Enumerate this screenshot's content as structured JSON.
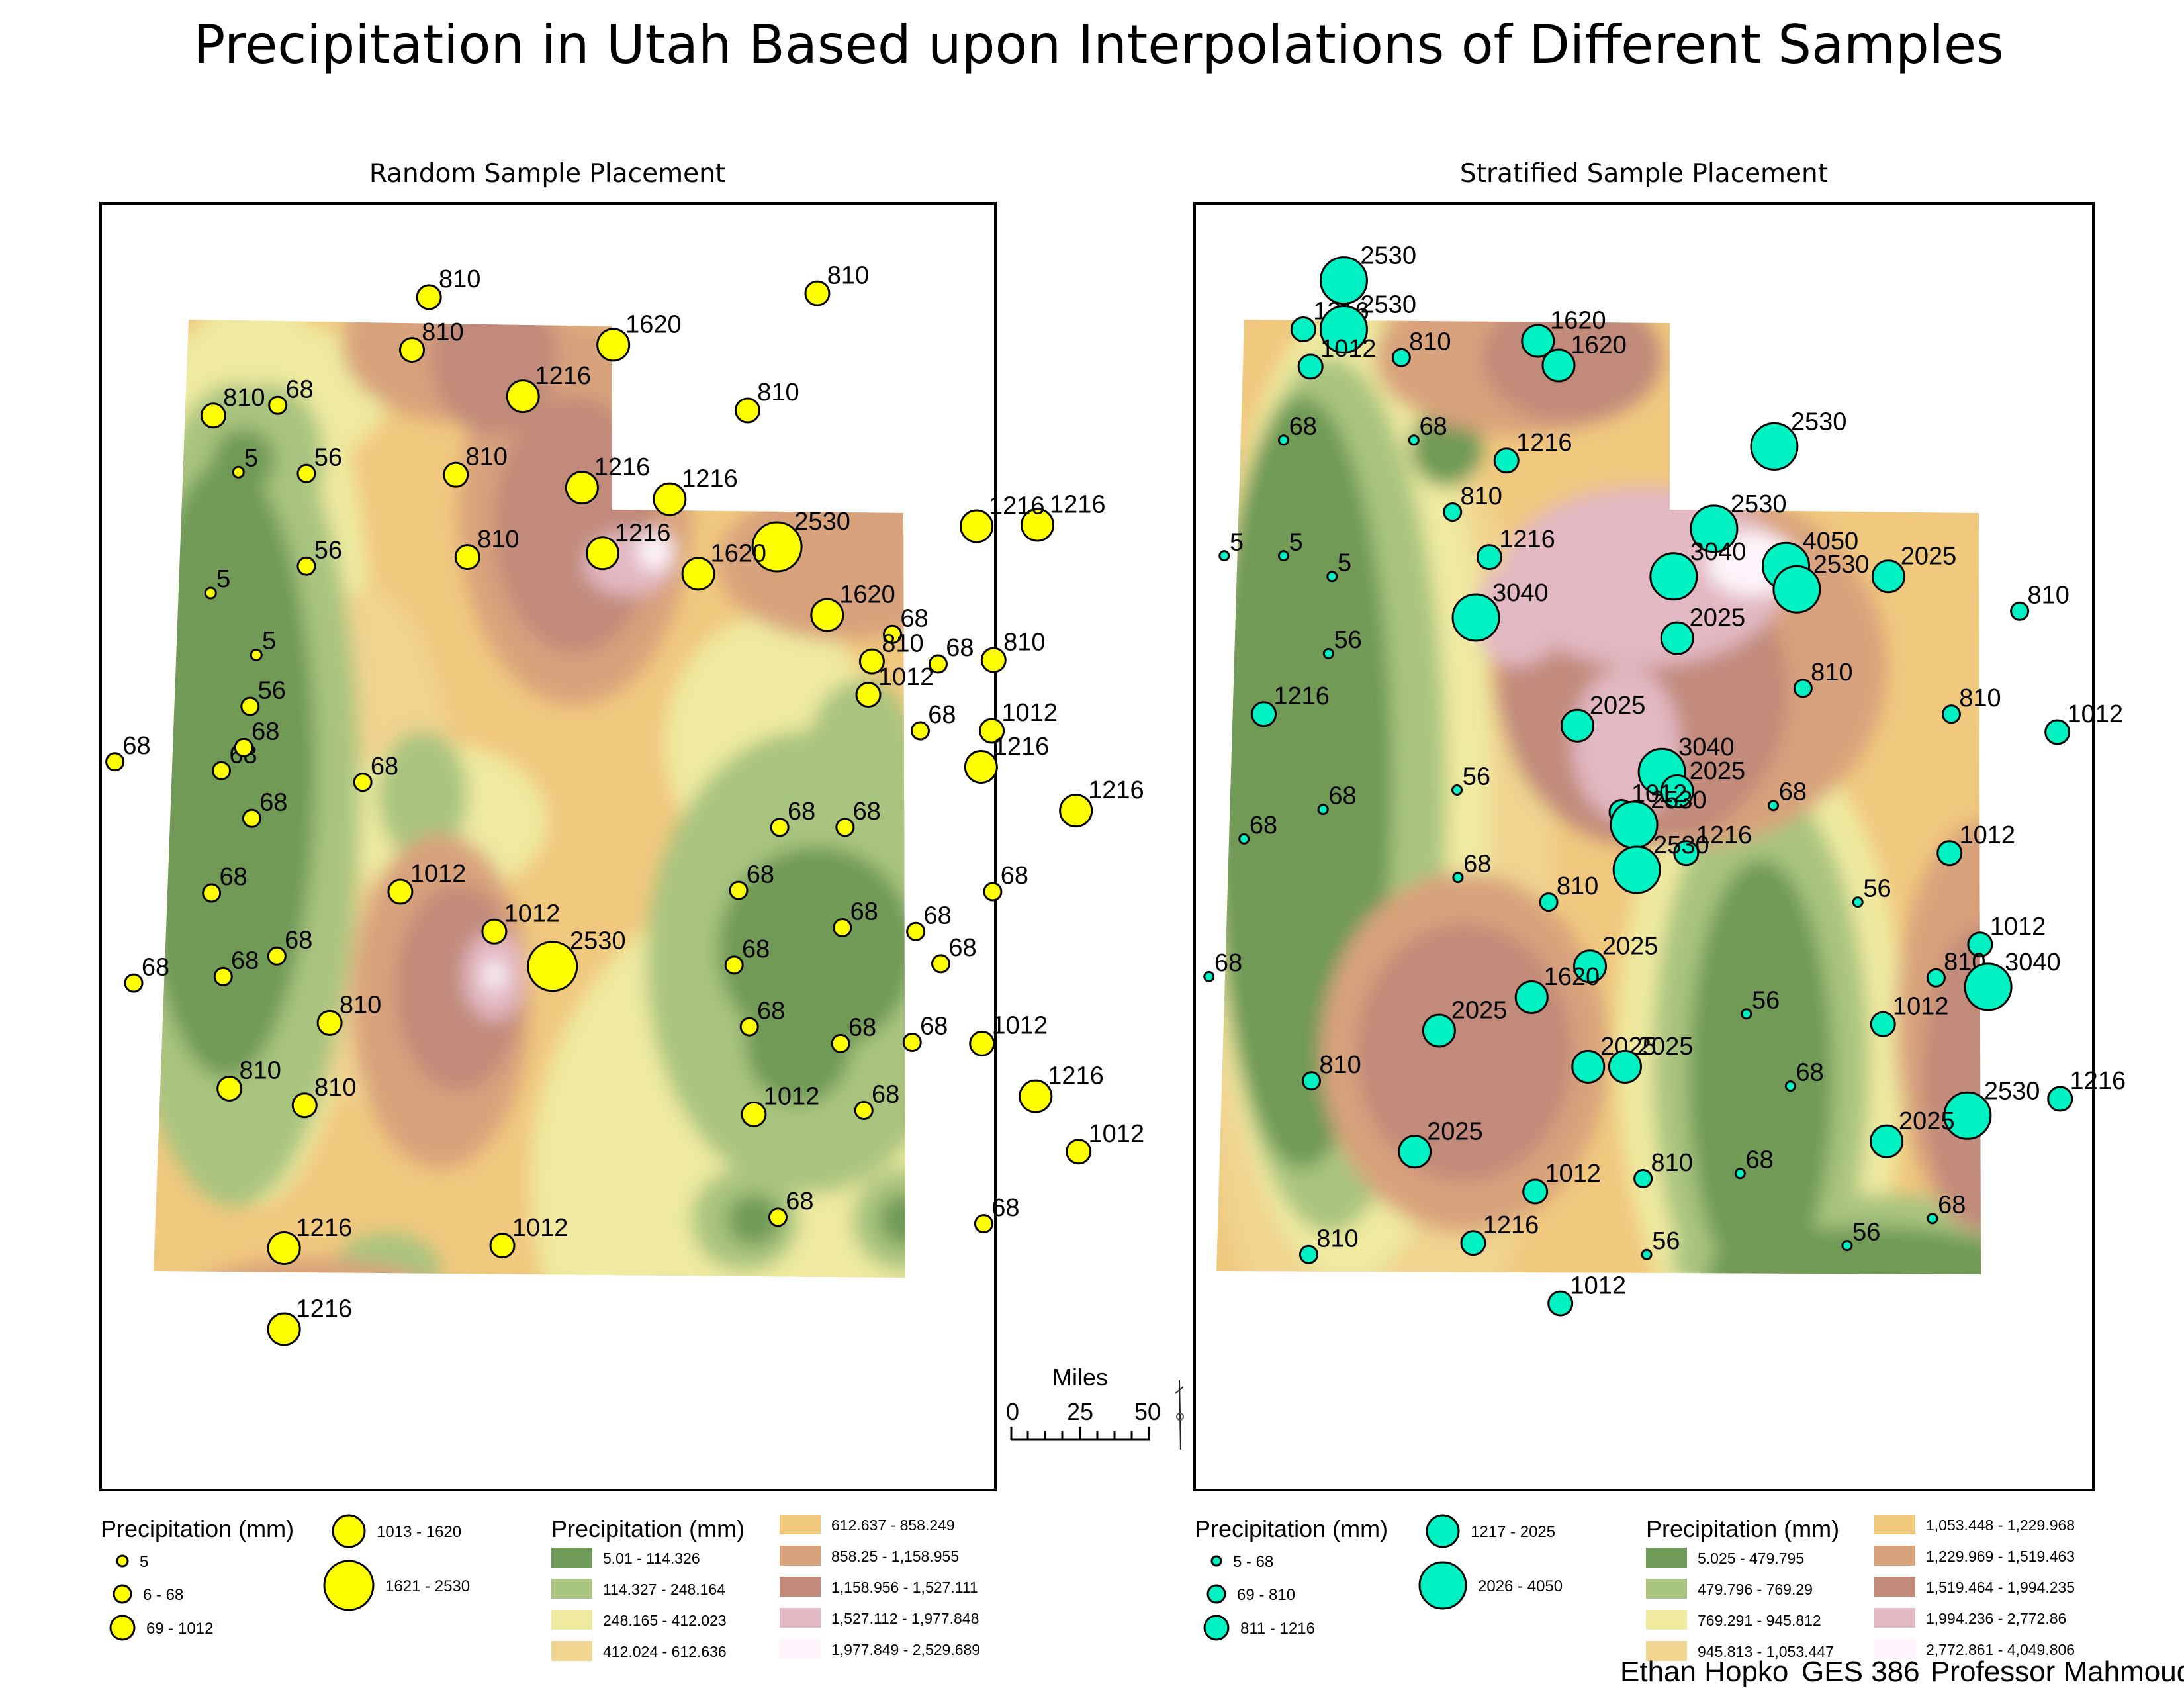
{
  "title": "Precipitation in Utah Based upon Interpolations of Different Samples",
  "palette": {
    "c1": "#6f9a57",
    "c2": "#a9c47f",
    "c3": "#efeaa0",
    "c4": "#f0d490",
    "c5": "#f0c87e",
    "c6": "#d8a27c",
    "c7": "#c18a7a",
    "c8": "#e2b8c2",
    "c9": "#fdf5fb",
    "yellow_symbol": "#ffff00",
    "teal_symbol": "#00f2c3"
  },
  "maps": [
    {
      "subtitle": "Random Sample Placement",
      "symbol_color": "#ffff00",
      "points": [
        {
          "x": 0.367,
          "y": 0.073,
          "v": "810",
          "r": 2
        },
        {
          "x": 0.801,
          "y": 0.07,
          "v": "810",
          "r": 2
        },
        {
          "x": 0.348,
          "y": 0.114,
          "v": "810",
          "r": 2
        },
        {
          "x": 0.573,
          "y": 0.11,
          "v": "1620",
          "r": 3
        },
        {
          "x": 0.126,
          "y": 0.165,
          "v": "810",
          "r": 2
        },
        {
          "x": 0.198,
          "y": 0.157,
          "v": "68",
          "r": 1
        },
        {
          "x": 0.472,
          "y": 0.15,
          "v": "1216",
          "r": 3
        },
        {
          "x": 0.723,
          "y": 0.161,
          "v": "810",
          "r": 2
        },
        {
          "x": 0.154,
          "y": 0.209,
          "v": "5",
          "r": 0
        },
        {
          "x": 0.23,
          "y": 0.21,
          "v": "56",
          "r": 1
        },
        {
          "x": 0.397,
          "y": 0.211,
          "v": "810",
          "r": 2
        },
        {
          "x": 0.538,
          "y": 0.221,
          "v": "1216",
          "r": 3
        },
        {
          "x": 0.636,
          "y": 0.23,
          "v": "1216",
          "r": 3
        },
        {
          "x": 1.047,
          "y": 0.25,
          "v": "1216",
          "r": 3
        },
        {
          "x": 0.979,
          "y": 0.251,
          "v": "1216",
          "r": 3
        },
        {
          "x": 0.756,
          "y": 0.267,
          "v": "2530",
          "r": 4
        },
        {
          "x": 0.23,
          "y": 0.282,
          "v": "56",
          "r": 1
        },
        {
          "x": 0.41,
          "y": 0.275,
          "v": "810",
          "r": 2
        },
        {
          "x": 0.561,
          "y": 0.272,
          "v": "1216",
          "r": 3
        },
        {
          "x": 0.668,
          "y": 0.288,
          "v": "1620",
          "r": 3
        },
        {
          "x": 0.123,
          "y": 0.303,
          "v": "5",
          "r": 0
        },
        {
          "x": 0.812,
          "y": 0.32,
          "v": "1620",
          "r": 3
        },
        {
          "x": 0.885,
          "y": 0.335,
          "v": "68",
          "r": 1
        },
        {
          "x": 0.174,
          "y": 0.351,
          "v": "5",
          "r": 0
        },
        {
          "x": 0.862,
          "y": 0.356,
          "v": "810",
          "r": 2
        },
        {
          "x": 0.936,
          "y": 0.358,
          "v": "68",
          "r": 1
        },
        {
          "x": 0.998,
          "y": 0.355,
          "v": "810",
          "r": 2
        },
        {
          "x": 0.167,
          "y": 0.391,
          "v": "56",
          "r": 1
        },
        {
          "x": 0.858,
          "y": 0.382,
          "v": "1012",
          "r": 2
        },
        {
          "x": 0.016,
          "y": 0.434,
          "v": "68",
          "r": 1
        },
        {
          "x": 0.135,
          "y": 0.441,
          "v": "68",
          "r": 1
        },
        {
          "x": 0.16,
          "y": 0.423,
          "v": "68",
          "r": 1
        },
        {
          "x": 0.293,
          "y": 0.45,
          "v": "68",
          "r": 1
        },
        {
          "x": 0.916,
          "y": 0.41,
          "v": "68",
          "r": 1
        },
        {
          "x": 0.996,
          "y": 0.41,
          "v": "1012",
          "r": 2
        },
        {
          "x": 0.984,
          "y": 0.438,
          "v": "1216",
          "r": 3
        },
        {
          "x": 0.169,
          "y": 0.478,
          "v": "68",
          "r": 1
        },
        {
          "x": 0.759,
          "y": 0.485,
          "v": "68",
          "r": 1
        },
        {
          "x": 0.832,
          "y": 0.485,
          "v": "68",
          "r": 1
        },
        {
          "x": 1.09,
          "y": 0.472,
          "v": "1216",
          "r": 3
        },
        {
          "x": 0.124,
          "y": 0.536,
          "v": "68",
          "r": 1
        },
        {
          "x": 0.335,
          "y": 0.535,
          "v": "1012",
          "r": 2
        },
        {
          "x": 0.713,
          "y": 0.534,
          "v": "68",
          "r": 1
        },
        {
          "x": 0.997,
          "y": 0.535,
          "v": "68",
          "r": 1
        },
        {
          "x": 0.44,
          "y": 0.566,
          "v": "1012",
          "r": 2
        },
        {
          "x": 0.829,
          "y": 0.563,
          "v": "68",
          "r": 1
        },
        {
          "x": 0.911,
          "y": 0.566,
          "v": "68",
          "r": 1
        },
        {
          "x": 0.197,
          "y": 0.585,
          "v": "68",
          "r": 1
        },
        {
          "x": 0.137,
          "y": 0.601,
          "v": "68",
          "r": 1
        },
        {
          "x": 0.505,
          "y": 0.593,
          "v": "2530",
          "r": 4
        },
        {
          "x": 0.708,
          "y": 0.592,
          "v": "68",
          "r": 1
        },
        {
          "x": 0.939,
          "y": 0.591,
          "v": "68",
          "r": 1
        },
        {
          "x": 0.037,
          "y": 0.606,
          "v": "68",
          "r": 1
        },
        {
          "x": 0.256,
          "y": 0.637,
          "v": "810",
          "r": 2
        },
        {
          "x": 0.725,
          "y": 0.64,
          "v": "68",
          "r": 1
        },
        {
          "x": 0.827,
          "y": 0.653,
          "v": "68",
          "r": 1
        },
        {
          "x": 0.907,
          "y": 0.652,
          "v": "68",
          "r": 1
        },
        {
          "x": 0.985,
          "y": 0.653,
          "v": "1012",
          "r": 2
        },
        {
          "x": 0.144,
          "y": 0.688,
          "v": "810",
          "r": 2
        },
        {
          "x": 0.228,
          "y": 0.701,
          "v": "810",
          "r": 2
        },
        {
          "x": 1.045,
          "y": 0.694,
          "v": "1216",
          "r": 3
        },
        {
          "x": 0.853,
          "y": 0.705,
          "v": "68",
          "r": 1
        },
        {
          "x": 0.73,
          "y": 0.708,
          "v": "1012",
          "r": 2
        },
        {
          "x": 1.093,
          "y": 0.737,
          "v": "1012",
          "r": 2
        },
        {
          "x": 0.757,
          "y": 0.788,
          "v": "68",
          "r": 1
        },
        {
          "x": 0.987,
          "y": 0.793,
          "v": "68",
          "r": 1
        },
        {
          "x": 0.205,
          "y": 0.812,
          "v": "1216",
          "r": 3
        },
        {
          "x": 0.449,
          "y": 0.81,
          "v": "1012",
          "r": 2
        },
        {
          "x": 0.205,
          "y": 0.875,
          "v": "1216",
          "r": 3
        }
      ],
      "legend": {
        "symbol_title": "Precipitation (mm)",
        "symbol_items": [
          "5",
          "6 - 68",
          "69 - 1012",
          "1013 - 1620",
          "1621 - 2530"
        ],
        "class_title": "Precipitation (mm)",
        "class_items": [
          "5.01 - 114.326",
          "114.327 - 248.164",
          "248.165 - 412.023",
          "412.024 - 612.636",
          "612.637 - 858.249",
          "858.25 - 1,158.955",
          "1,158.956 - 1,527.111",
          "1,527.112 - 1,977.848",
          "1,977.849 - 2,529.689"
        ]
      }
    },
    {
      "subtitle": "Stratified Sample Placement",
      "symbol_color": "#00f2c3",
      "points": [
        {
          "x": 0.166,
          "y": 0.06,
          "v": "2530",
          "r": 4
        },
        {
          "x": 0.121,
          "y": 0.098,
          "v": "1216",
          "r": 2
        },
        {
          "x": 0.166,
          "y": 0.098,
          "v": "2530",
          "r": 4
        },
        {
          "x": 0.129,
          "y": 0.127,
          "v": "1012",
          "r": 2
        },
        {
          "x": 0.23,
          "y": 0.12,
          "v": "810",
          "r": 1
        },
        {
          "x": 0.382,
          "y": 0.107,
          "v": "1620",
          "r": 3
        },
        {
          "x": 0.405,
          "y": 0.126,
          "v": "1620",
          "r": 3
        },
        {
          "x": 0.645,
          "y": 0.189,
          "v": "2530",
          "r": 4
        },
        {
          "x": 0.099,
          "y": 0.184,
          "v": "68",
          "r": 0
        },
        {
          "x": 0.244,
          "y": 0.184,
          "v": "68",
          "r": 0
        },
        {
          "x": 0.347,
          "y": 0.2,
          "v": "1216",
          "r": 2
        },
        {
          "x": 0.287,
          "y": 0.24,
          "v": "810",
          "r": 1
        },
        {
          "x": 0.033,
          "y": 0.274,
          "v": "5",
          "r": 0
        },
        {
          "x": 0.099,
          "y": 0.274,
          "v": "5",
          "r": 0
        },
        {
          "x": 0.153,
          "y": 0.29,
          "v": "5",
          "r": 0
        },
        {
          "x": 0.328,
          "y": 0.275,
          "v": "1216",
          "r": 2
        },
        {
          "x": 0.578,
          "y": 0.253,
          "v": "2530",
          "r": 4
        },
        {
          "x": 0.533,
          "y": 0.29,
          "v": "3040",
          "r": 4
        },
        {
          "x": 0.658,
          "y": 0.282,
          "v": "4050",
          "r": 4
        },
        {
          "x": 0.67,
          "y": 0.3,
          "v": "2530",
          "r": 4
        },
        {
          "x": 0.772,
          "y": 0.29,
          "v": "2025",
          "r": 3
        },
        {
          "x": 0.918,
          "y": 0.317,
          "v": "810",
          "r": 1
        },
        {
          "x": 0.313,
          "y": 0.322,
          "v": "3040",
          "r": 4
        },
        {
          "x": 0.537,
          "y": 0.338,
          "v": "2025",
          "r": 3
        },
        {
          "x": 0.149,
          "y": 0.35,
          "v": "56",
          "r": 0
        },
        {
          "x": 0.677,
          "y": 0.377,
          "v": "810",
          "r": 1
        },
        {
          "x": 0.077,
          "y": 0.397,
          "v": "1216",
          "r": 2
        },
        {
          "x": 0.842,
          "y": 0.397,
          "v": "810",
          "r": 1
        },
        {
          "x": 0.426,
          "y": 0.406,
          "v": "2025",
          "r": 3
        },
        {
          "x": 0.96,
          "y": 0.411,
          "v": "1012",
          "r": 2
        },
        {
          "x": 0.52,
          "y": 0.442,
          "v": "3040",
          "r": 4
        },
        {
          "x": 0.537,
          "y": 0.457,
          "v": "2025",
          "r": 3
        },
        {
          "x": 0.292,
          "y": 0.456,
          "v": "56",
          "r": 0
        },
        {
          "x": 0.644,
          "y": 0.468,
          "v": "68",
          "r": 0
        },
        {
          "x": 0.143,
          "y": 0.471,
          "v": "68",
          "r": 0
        },
        {
          "x": 0.475,
          "y": 0.473,
          "v": "1012",
          "r": 2
        },
        {
          "x": 0.055,
          "y": 0.494,
          "v": "68",
          "r": 0
        },
        {
          "x": 0.489,
          "y": 0.483,
          "v": "2530",
          "r": 4
        },
        {
          "x": 0.547,
          "y": 0.505,
          "v": "1216",
          "r": 2
        },
        {
          "x": 0.84,
          "y": 0.505,
          "v": "1012",
          "r": 2
        },
        {
          "x": 0.293,
          "y": 0.524,
          "v": "68",
          "r": 0
        },
        {
          "x": 0.492,
          "y": 0.518,
          "v": "2530",
          "r": 4
        },
        {
          "x": 0.394,
          "y": 0.543,
          "v": "810",
          "r": 1
        },
        {
          "x": 0.738,
          "y": 0.543,
          "v": "56",
          "r": 0
        },
        {
          "x": 0.016,
          "y": 0.601,
          "v": "68",
          "r": 0
        },
        {
          "x": 0.874,
          "y": 0.576,
          "v": "1012",
          "r": 2
        },
        {
          "x": 0.44,
          "y": 0.593,
          "v": "2025",
          "r": 3
        },
        {
          "x": 0.375,
          "y": 0.617,
          "v": "1620",
          "r": 3
        },
        {
          "x": 0.825,
          "y": 0.602,
          "v": "810",
          "r": 1
        },
        {
          "x": 0.883,
          "y": 0.609,
          "v": "3040",
          "r": 4
        },
        {
          "x": 0.272,
          "y": 0.643,
          "v": "2025",
          "r": 3
        },
        {
          "x": 0.614,
          "y": 0.63,
          "v": "56",
          "r": 0
        },
        {
          "x": 0.766,
          "y": 0.638,
          "v": "1012",
          "r": 2
        },
        {
          "x": 0.438,
          "y": 0.671,
          "v": "2025",
          "r": 3
        },
        {
          "x": 0.479,
          "y": 0.671,
          "v": "2025",
          "r": 3
        },
        {
          "x": 0.13,
          "y": 0.682,
          "v": "810",
          "r": 1
        },
        {
          "x": 0.663,
          "y": 0.686,
          "v": "68",
          "r": 0
        },
        {
          "x": 0.963,
          "y": 0.696,
          "v": "1216",
          "r": 2
        },
        {
          "x": 0.86,
          "y": 0.709,
          "v": "2530",
          "r": 4
        },
        {
          "x": 0.77,
          "y": 0.729,
          "v": "2025",
          "r": 3
        },
        {
          "x": 0.245,
          "y": 0.737,
          "v": "2025",
          "r": 3
        },
        {
          "x": 0.379,
          "y": 0.768,
          "v": "1012",
          "r": 2
        },
        {
          "x": 0.499,
          "y": 0.758,
          "v": "810",
          "r": 1
        },
        {
          "x": 0.607,
          "y": 0.754,
          "v": "68",
          "r": 0
        },
        {
          "x": 0.821,
          "y": 0.789,
          "v": "68",
          "r": 0
        },
        {
          "x": 0.31,
          "y": 0.808,
          "v": "1216",
          "r": 2
        },
        {
          "x": 0.503,
          "y": 0.817,
          "v": "56",
          "r": 0
        },
        {
          "x": 0.726,
          "y": 0.81,
          "v": "56",
          "r": 0
        },
        {
          "x": 0.127,
          "y": 0.817,
          "v": "810",
          "r": 1
        },
        {
          "x": 0.407,
          "y": 0.855,
          "v": "1012",
          "r": 2
        }
      ],
      "legend": {
        "symbol_title": "Precipitation (mm)",
        "symbol_items": [
          "5 - 68",
          "69 - 810",
          "811 - 1216",
          "1217 - 2025",
          "2026 - 4050"
        ],
        "class_title": "Precipitation (mm)",
        "class_items": [
          "5.025 - 479.795",
          "479.796 - 769.29",
          "769.291 - 945.812",
          "945.813 - 1,053.447",
          "1,053.448 - 1,229.968",
          "1,229.969 - 1,519.463",
          "1,519.464 - 1,994.235",
          "1,994.236 - 2,772.86",
          "2,772.861 - 4,049.806"
        ]
      }
    }
  ],
  "scale_bar": {
    "title": "Miles",
    "ticks": [
      "0",
      "25",
      "50"
    ]
  },
  "footer": {
    "author": "Ethan Hopko",
    "course": "GES 386",
    "professor": "Professor Mahmoudi"
  }
}
